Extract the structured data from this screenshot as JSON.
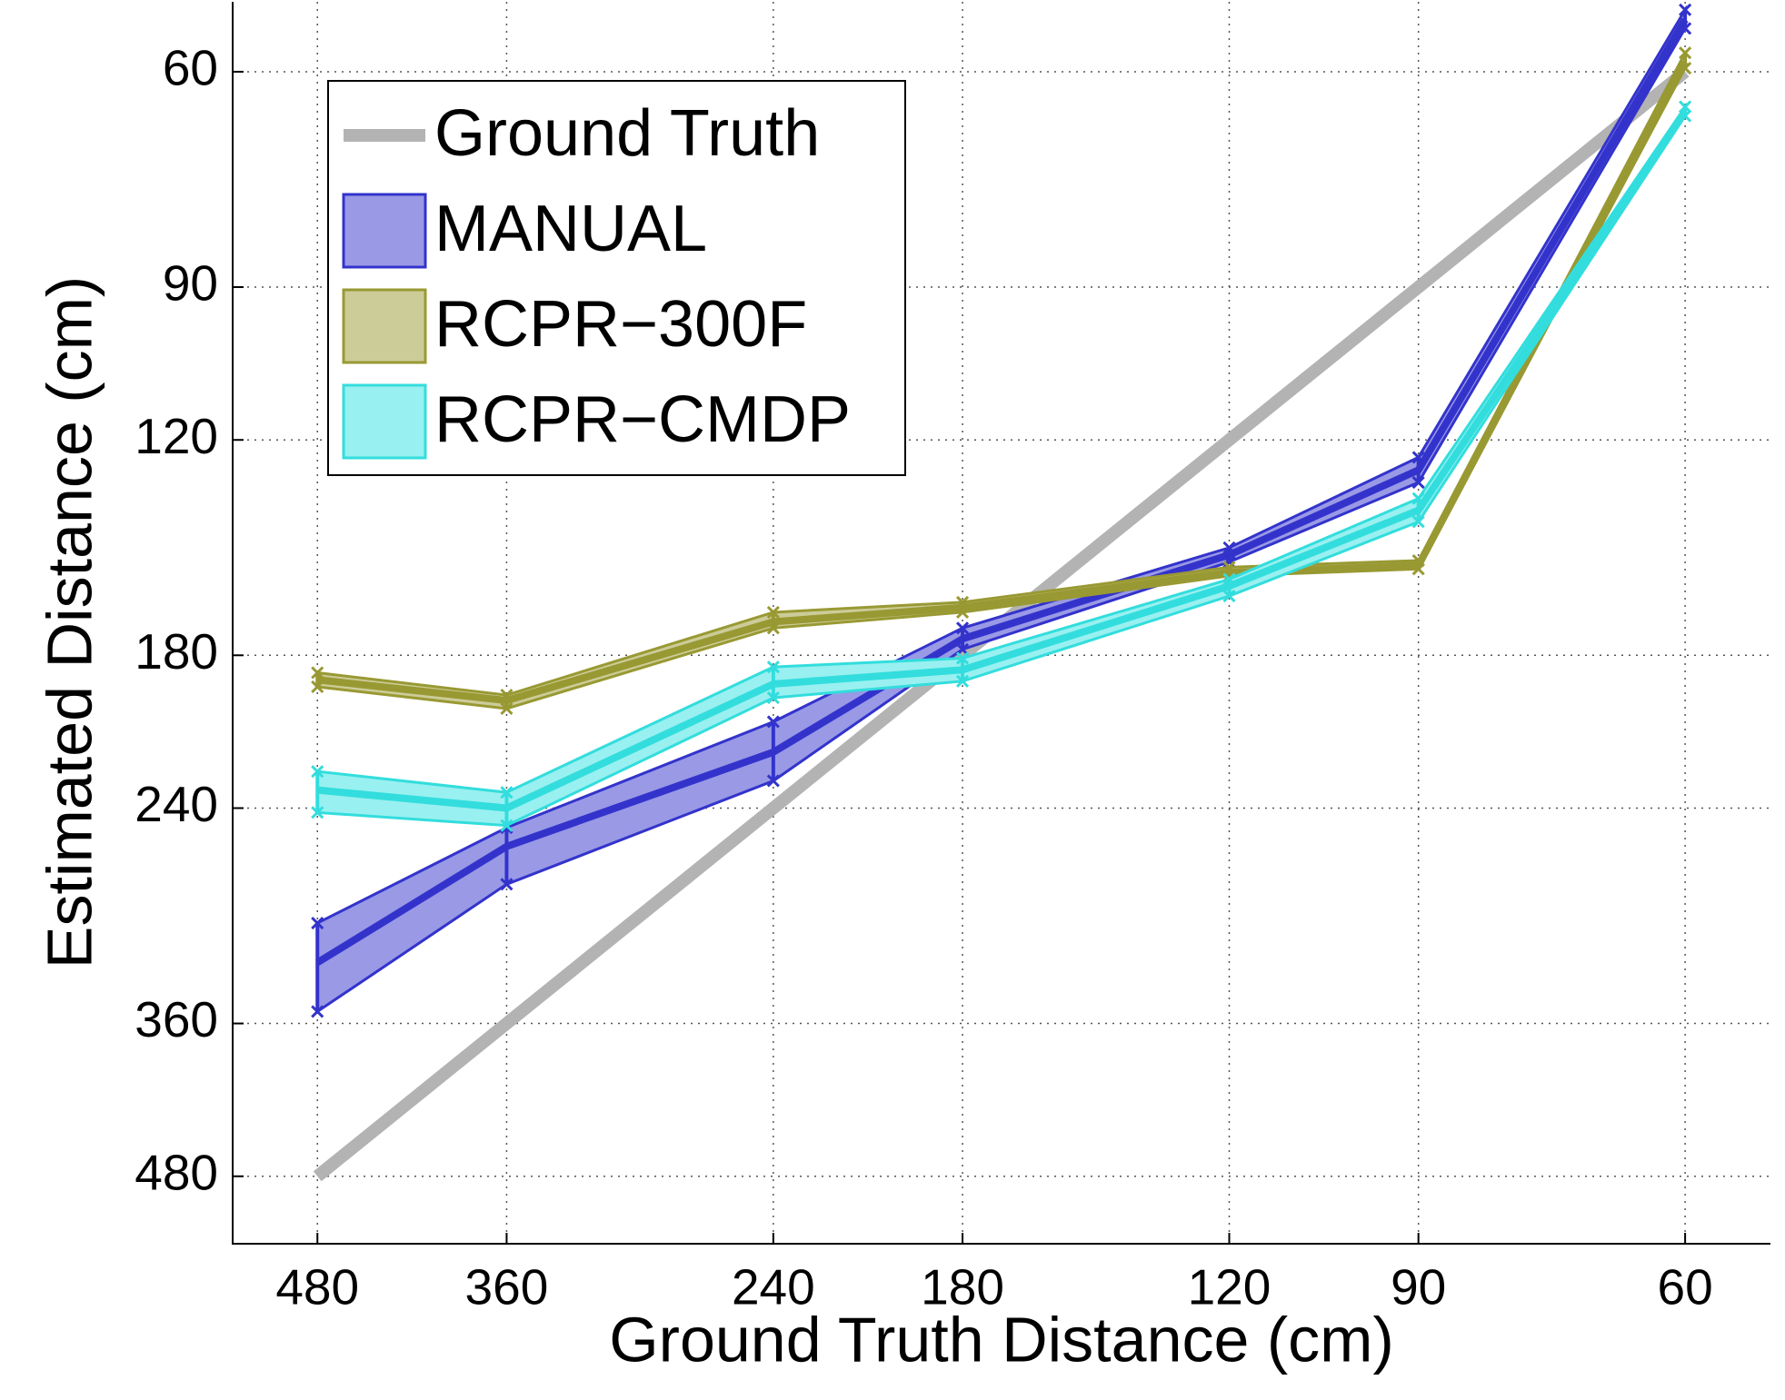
{
  "chart_data": {
    "type": "line_band",
    "x_label": "Ground Truth Distance (cm)",
    "y_label": "Estimated Distance (cm)",
    "x": [
      480,
      360,
      240,
      180,
      120,
      90,
      60
    ],
    "xlim": [
      546,
      52.7
    ],
    "ylim": [
      545,
      52.6
    ],
    "xticks": [
      480,
      360,
      240,
      180,
      120,
      90,
      60
    ],
    "yticks": [
      60,
      90,
      120,
      180,
      240,
      360,
      480
    ],
    "log_x": true,
    "log_y": true,
    "grid": true,
    "legend": "upper left",
    "series": [
      {
        "name": "Ground Truth",
        "color": "#b3b3b3",
        "values": [
          480,
          360,
          240,
          180,
          120,
          90,
          60
        ]
      },
      {
        "name": "MANUAL",
        "color": "#3333cc",
        "fill": "#9999e6",
        "values": [
          321,
          258,
          216,
          174.5,
          149,
          127,
          54.4
        ],
        "lower": [
          298,
          249,
          204,
          171,
          147,
          124,
          53.4
        ],
        "upper": [
          352,
          277,
          228,
          178,
          151,
          130,
          55.3
        ]
      },
      {
        "name": "RCPR−300F",
        "color": "#999933",
        "fill": "#cccc99",
        "values": [
          188.5,
          196,
          169,
          164.5,
          154,
          152,
          58.9
        ],
        "lower": [
          186,
          194,
          166,
          162.9,
          152.5,
          150.6,
          57.9
        ],
        "upper": [
          191,
          199,
          171,
          166,
          155,
          153,
          59.6
        ]
      },
      {
        "name": "RCPR−CMDP",
        "color": "#33dddd",
        "fill": "#99f0f0",
        "values": [
          232,
          240,
          190,
          185,
          158,
          137,
          64.7
        ],
        "lower": [
          224,
          233,
          184,
          181,
          156,
          134,
          64.1
        ],
        "upper": [
          242,
          248,
          195,
          189,
          161,
          140,
          65.2
        ]
      }
    ]
  }
}
